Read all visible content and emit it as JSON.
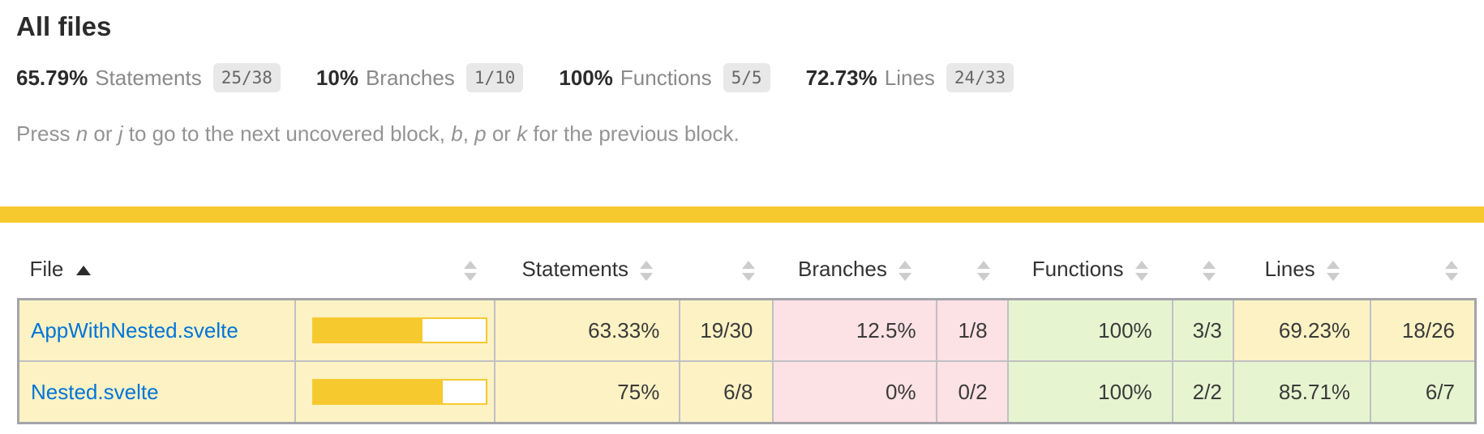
{
  "header": {
    "title": "All files"
  },
  "summary": {
    "items": [
      {
        "pct": "65.79%",
        "label": "Statements",
        "fraction": "25/38"
      },
      {
        "pct": "10%",
        "label": "Branches",
        "fraction": "1/10"
      },
      {
        "pct": "100%",
        "label": "Functions",
        "fraction": "5/5"
      },
      {
        "pct": "72.73%",
        "label": "Lines",
        "fraction": "24/33"
      }
    ]
  },
  "hint": {
    "segments": [
      {
        "text": "Press "
      },
      {
        "text": "n",
        "italic": true
      },
      {
        "text": " or "
      },
      {
        "text": "j",
        "italic": true
      },
      {
        "text": " to go to the next uncovered block, "
      },
      {
        "text": "b",
        "italic": true
      },
      {
        "text": ", "
      },
      {
        "text": "p",
        "italic": true
      },
      {
        "text": " or "
      },
      {
        "text": "k",
        "italic": true
      },
      {
        "text": " for the previous block."
      }
    ]
  },
  "table": {
    "columns": [
      {
        "key": "file",
        "label": "File",
        "sort": "asc"
      },
      {
        "key": "statements_bar",
        "label": ""
      },
      {
        "key": "statements_pct",
        "label": "Statements"
      },
      {
        "key": "statements_raw",
        "label": ""
      },
      {
        "key": "branches_pct",
        "label": "Branches"
      },
      {
        "key": "branches_raw",
        "label": ""
      },
      {
        "key": "functions_pct",
        "label": "Functions"
      },
      {
        "key": "functions_raw",
        "label": ""
      },
      {
        "key": "lines_pct",
        "label": "Lines"
      },
      {
        "key": "lines_raw",
        "label": ""
      }
    ],
    "rows": [
      {
        "file": "AppWithNested.svelte",
        "file_level": "medium",
        "bar_percent": 63.33,
        "cells": [
          {
            "value": "63.33%",
            "level": "medium"
          },
          {
            "value": "19/30",
            "level": "medium"
          },
          {
            "value": "12.5%",
            "level": "low"
          },
          {
            "value": "1/8",
            "level": "low"
          },
          {
            "value": "100%",
            "level": "high"
          },
          {
            "value": "3/3",
            "level": "high"
          },
          {
            "value": "69.23%",
            "level": "medium"
          },
          {
            "value": "18/26",
            "level": "medium"
          }
        ]
      },
      {
        "file": "Nested.svelte",
        "file_level": "medium",
        "bar_percent": 75,
        "cells": [
          {
            "value": "75%",
            "level": "medium"
          },
          {
            "value": "6/8",
            "level": "medium"
          },
          {
            "value": "0%",
            "level": "low"
          },
          {
            "value": "0/2",
            "level": "low"
          },
          {
            "value": "100%",
            "level": "high"
          },
          {
            "value": "2/2",
            "level": "high"
          },
          {
            "value": "85.71%",
            "level": "high"
          },
          {
            "value": "6/7",
            "level": "high"
          }
        ]
      }
    ]
  },
  "colors": {
    "status_line": "#f6c92e",
    "bar_fill": "#f6c92e",
    "level_low": "#fce1e5",
    "level_medium": "#fcf2c4",
    "level_high": "#e6f5d0",
    "link": "#0074d9"
  }
}
